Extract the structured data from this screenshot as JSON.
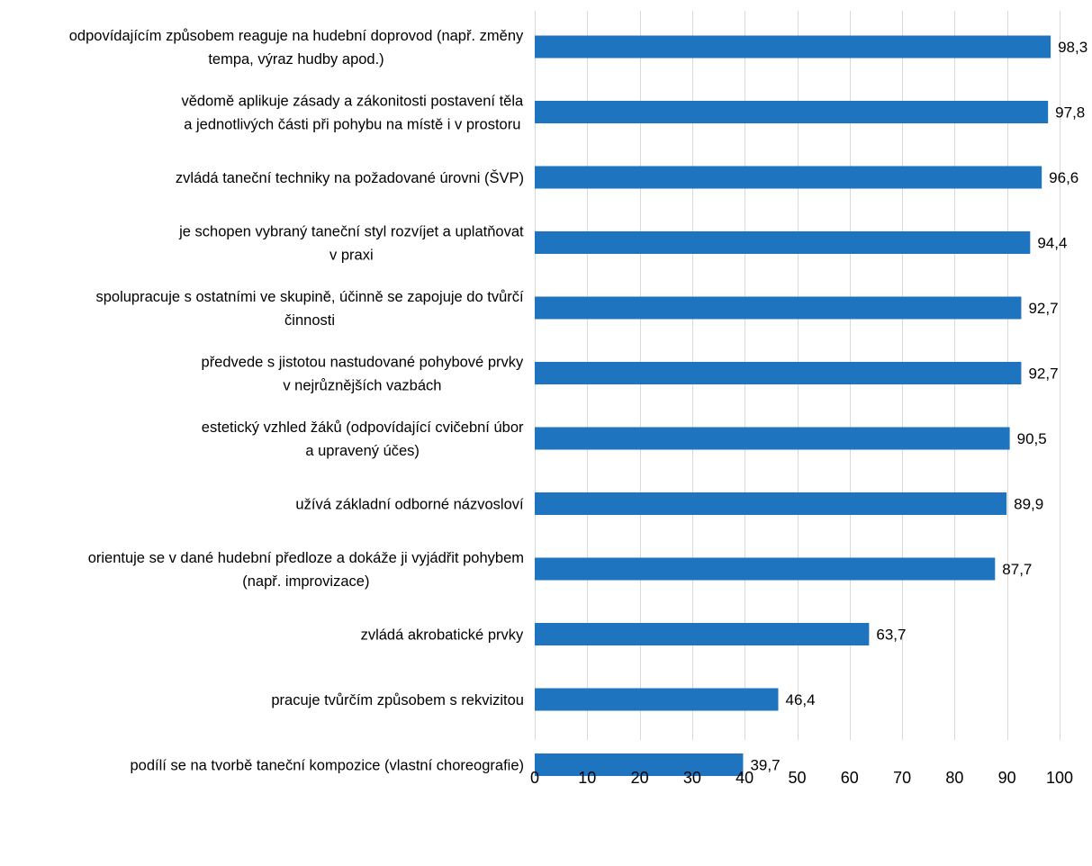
{
  "chart_data": {
    "type": "bar",
    "orientation": "horizontal",
    "categories": [
      [
        "odpovídajícím způsobem reaguje na hudební doprovod (např. změny",
        "tempa, výraz hudby apod.)"
      ],
      [
        "vědomě aplikuje zásady a zákonitosti postavení těla",
        "a jednotlivých části při pohybu na místě i v prostoru"
      ],
      [
        "zvládá taneční techniky na požadované úrovni (ŠVP)"
      ],
      [
        "je schopen vybraný taneční styl rozvíjet a uplatňovat",
        "v praxi"
      ],
      [
        "spolupracuje s ostatními ve skupině, účinně se zapojuje do tvůrčí",
        "činnosti"
      ],
      [
        "předvede s jistotou nastudované pohybové prvky",
        "v nejrůznějších vazbách"
      ],
      [
        "estetický vzhled žáků (odpovídající cvičební úbor",
        "a upravený účes)"
      ],
      [
        "užívá základní odborné názvosloví"
      ],
      [
        "orientuje se v dané hudební předloze a dokáže ji vyjádřit pohybem",
        "(např. improvizace)"
      ],
      [
        "zvládá akrobatické prvky"
      ],
      [
        "pracuje tvůrčím způsobem s rekvizitou"
      ],
      [
        "podílí se na tvorbě taneční kompozice (vlastní choreografie)"
      ]
    ],
    "values": [
      98.3,
      97.8,
      96.6,
      94.4,
      92.7,
      92.7,
      90.5,
      89.9,
      87.7,
      63.7,
      46.4,
      39.7
    ],
    "value_labels": [
      "98,3",
      "97,8",
      "96,6",
      "94,4",
      "92,7",
      "92,7",
      "90,5",
      "89,9",
      "87,7",
      "63,7",
      "46,4",
      "39,7"
    ],
    "xlim": [
      0,
      100
    ],
    "xticks": [
      0,
      10,
      20,
      30,
      40,
      50,
      60,
      70,
      80,
      90,
      100
    ],
    "grid": "vertical",
    "legend": "none",
    "bar_color": "#1f74c0"
  }
}
